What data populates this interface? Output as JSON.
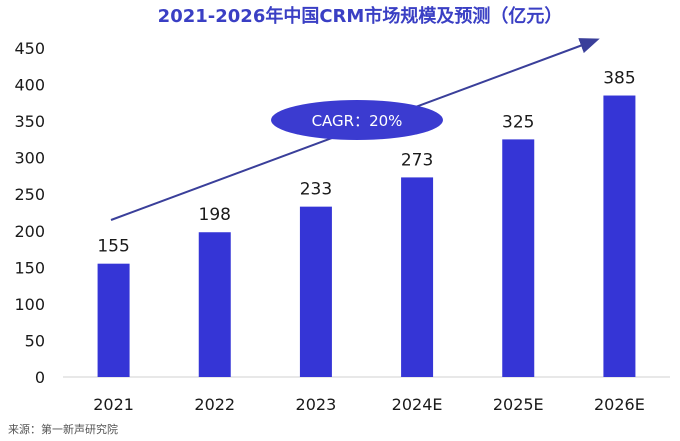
{
  "colors": {
    "title": "#3a3fc4",
    "bar": "#3535d6",
    "arrow": "#3a3f9a",
    "ellipse": "#3b3bd0",
    "ellipse_text": "#ffffff",
    "axis_text": "#1a1a1a",
    "source_text": "#555555"
  },
  "chart_data": {
    "type": "bar",
    "title": "2021-2026年中国CRM市场规模及预测（亿元）",
    "categories": [
      "2021",
      "2022",
      "2023",
      "2024E",
      "2025E",
      "2026E"
    ],
    "values": [
      155,
      198,
      233,
      273,
      325,
      385
    ],
    "data_labels": [
      "155",
      "198",
      "233",
      "273",
      "325",
      "385"
    ],
    "ylim": [
      0,
      450
    ],
    "y_ticks": [
      "0",
      "50",
      "100",
      "150",
      "200",
      "250",
      "300",
      "350",
      "400",
      "450"
    ],
    "grid": false,
    "annotation": "CAGR：20%",
    "trend_arrow": true
  },
  "source": "来源：第一新声研究院"
}
